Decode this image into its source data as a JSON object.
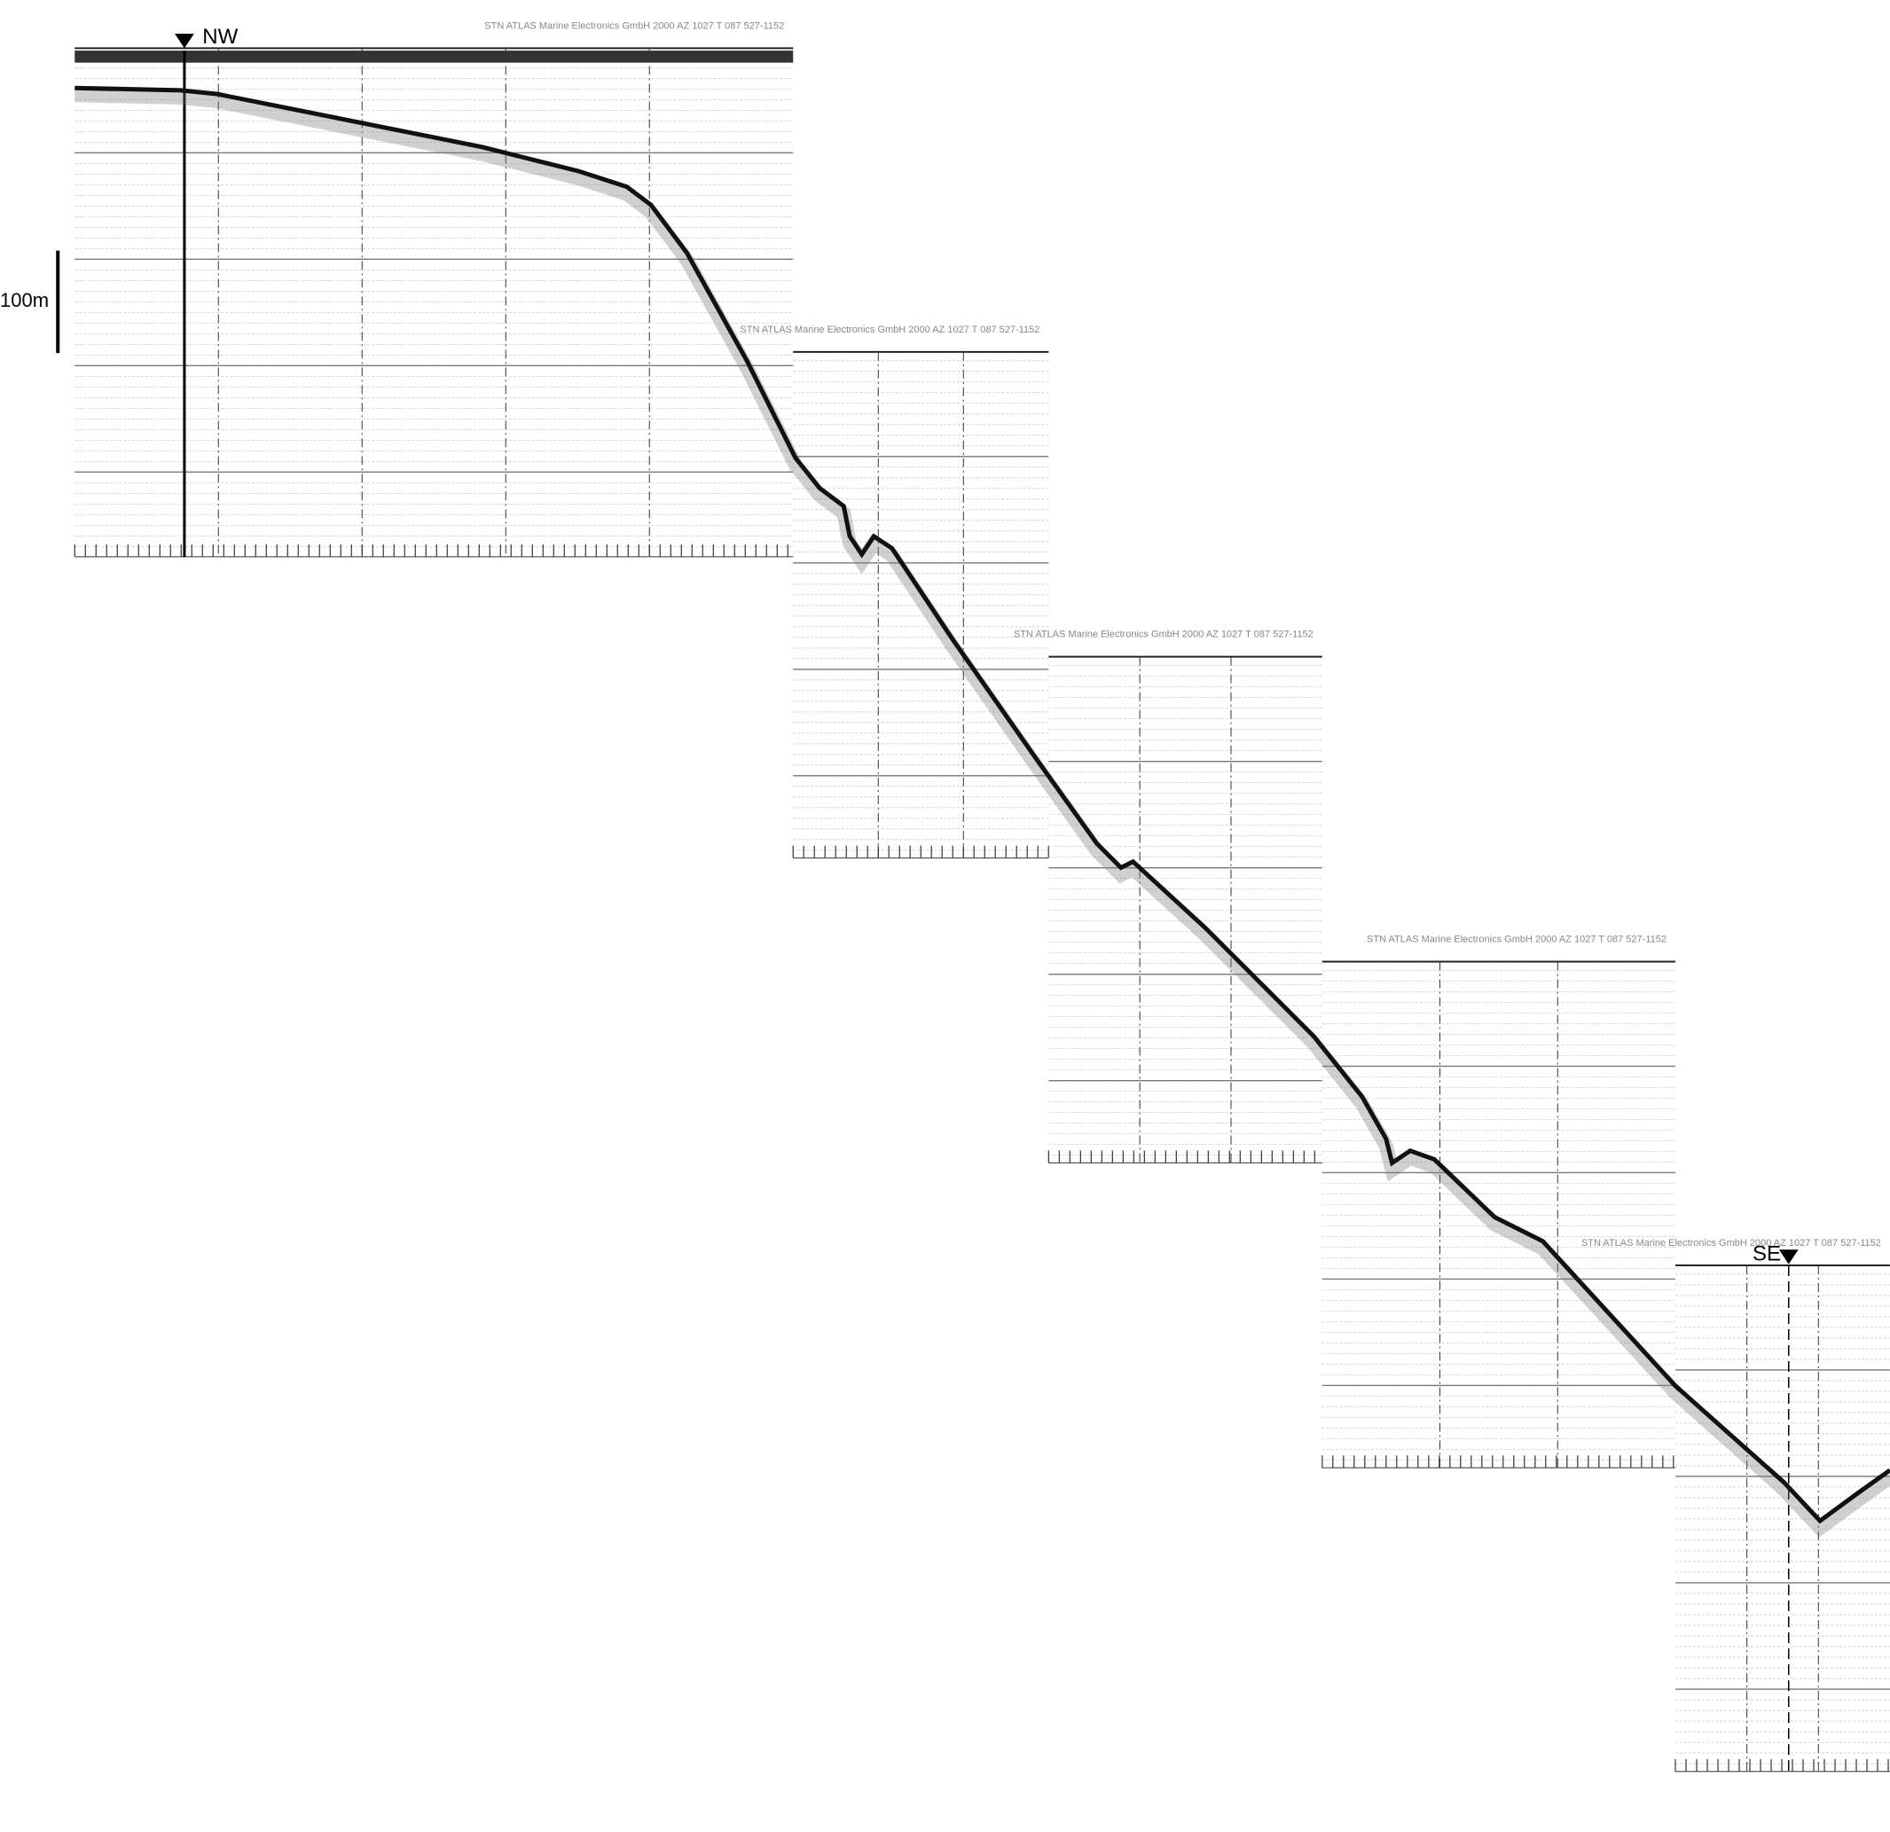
{
  "record_header": {
    "company": "STN ATLAS Marine Electronics GmbH",
    "year": "2000",
    "model": "AZ 1027 T 087",
    "part_no": "527-1152"
  },
  "markers": {
    "start": "NW",
    "end": "SE"
  },
  "scale_bar": {
    "label": "100m"
  },
  "colors": {
    "trace": "#111111",
    "grid": "#bbbbbb",
    "header_text": "#888888"
  }
}
